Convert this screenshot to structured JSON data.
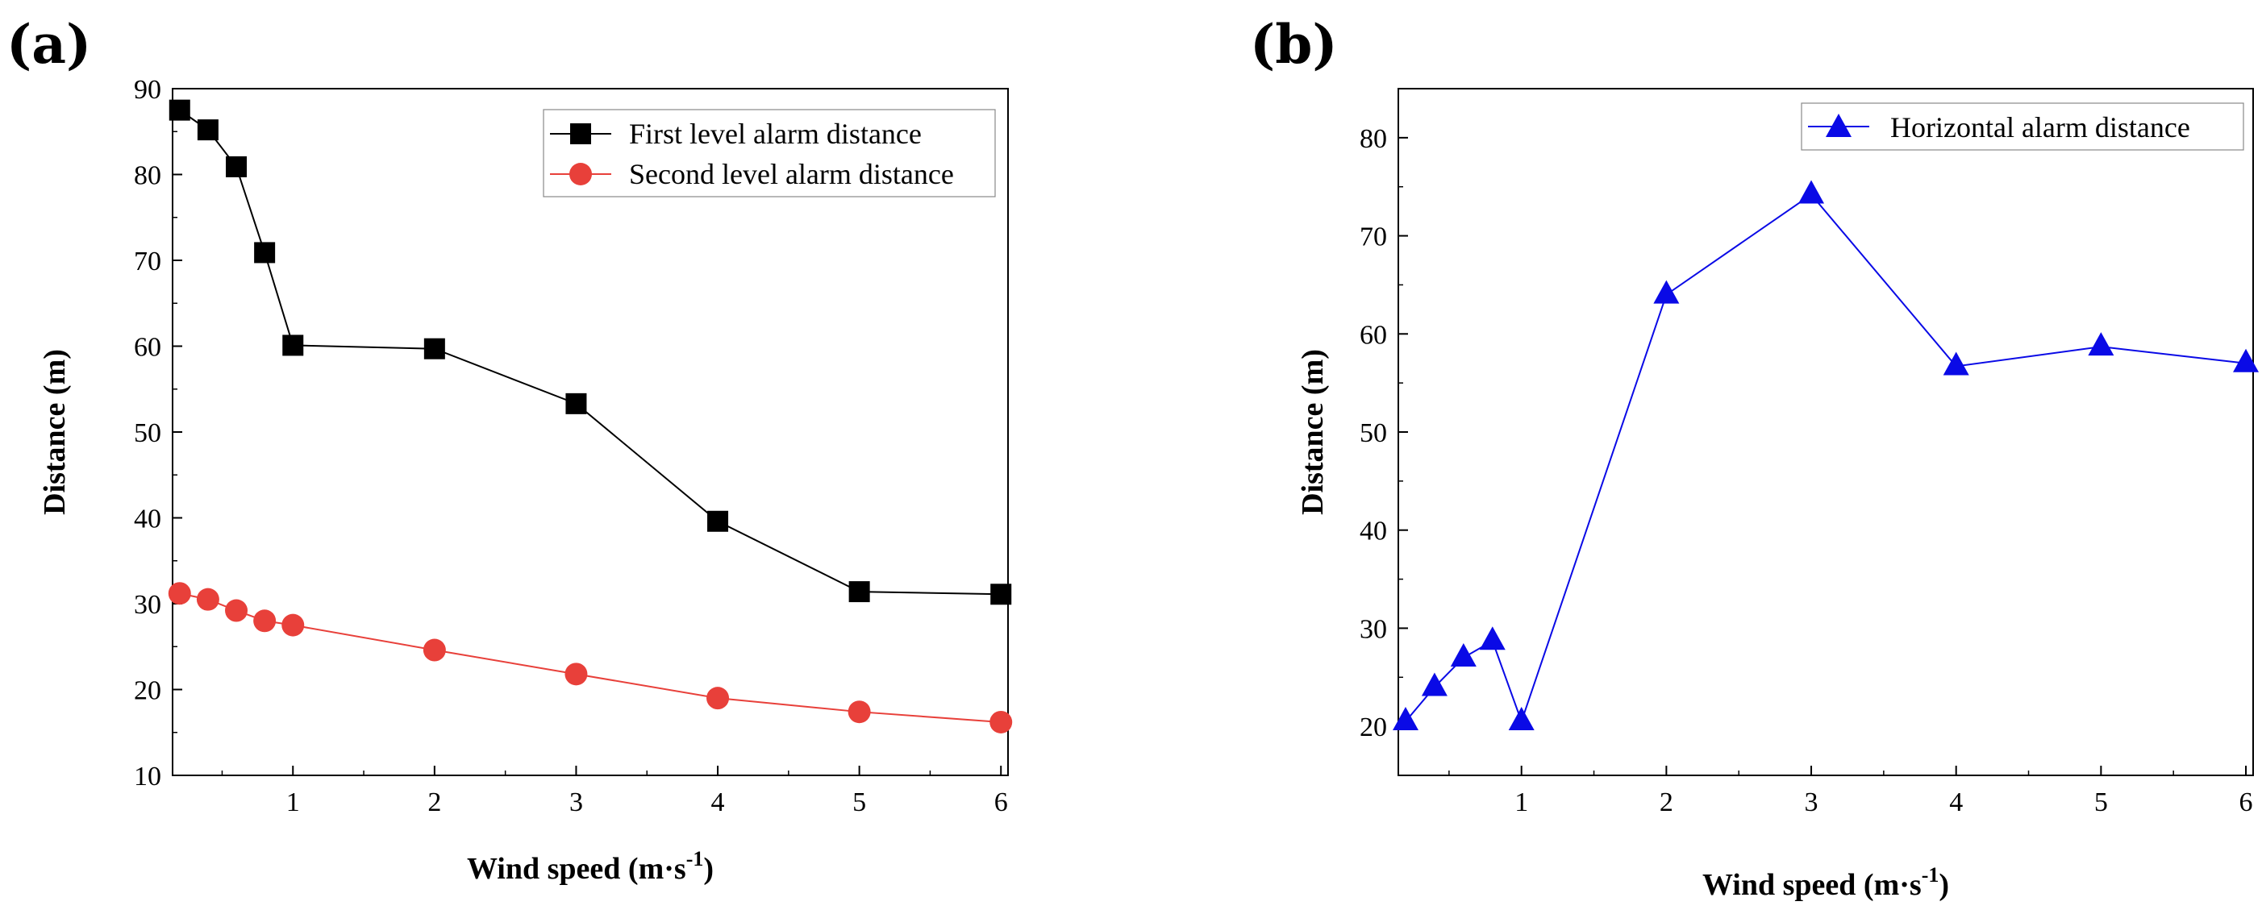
{
  "chart_data": [
    {
      "panel": "(a)",
      "type": "line",
      "xlabel": "Wind speed (m·s",
      "xlabel_sup": "-1",
      "xlabel_close": ")",
      "ylabel": "Distance (m)",
      "xlim": [
        0.15,
        6.05
      ],
      "ylim": [
        10,
        90
      ],
      "xticks": [
        "1",
        "2",
        "3",
        "4",
        "5",
        "6"
      ],
      "yticks": [
        "10",
        "20",
        "30",
        "40",
        "50",
        "60",
        "70",
        "80",
        "90"
      ],
      "legend_position": "top-right",
      "series": [
        {
          "name": "First level alarm distance",
          "color": "#000000",
          "marker": "square",
          "x": [
            0.2,
            0.4,
            0.6,
            0.8,
            1,
            2,
            3,
            4,
            5,
            6
          ],
          "y": [
            87.5,
            85.2,
            80.9,
            70.9,
            60.1,
            59.7,
            53.3,
            39.6,
            31.4,
            31.1
          ]
        },
        {
          "name": "Second level alarm distance",
          "color": "#e8403a",
          "marker": "circle",
          "x": [
            0.2,
            0.4,
            0.6,
            0.8,
            1,
            2,
            3,
            4,
            5,
            6
          ],
          "y": [
            31.2,
            30.5,
            29.2,
            28.0,
            27.5,
            24.6,
            21.8,
            19.0,
            17.4,
            16.2
          ]
        }
      ]
    },
    {
      "panel": "(b)",
      "type": "line",
      "xlabel": "Wind speed (m·s",
      "xlabel_sup": "-1",
      "xlabel_close": ")",
      "ylabel": "Distance (m)",
      "xlim": [
        0.15,
        6.05
      ],
      "ylim": [
        15,
        85
      ],
      "xticks": [
        "1",
        "2",
        "3",
        "4",
        "5",
        "6"
      ],
      "yticks": [
        "20",
        "30",
        "40",
        "50",
        "60",
        "70",
        "80"
      ],
      "legend_position": "top-right",
      "series": [
        {
          "name": "Horizontal alarm distance",
          "color": "#0a0ae6",
          "marker": "triangle",
          "x": [
            0.2,
            0.4,
            0.6,
            0.8,
            1,
            2,
            3,
            4,
            5,
            6
          ],
          "y": [
            20.5,
            24.0,
            27.0,
            28.7,
            20.5,
            64.0,
            74.2,
            56.7,
            58.7,
            57.0
          ]
        }
      ]
    }
  ]
}
